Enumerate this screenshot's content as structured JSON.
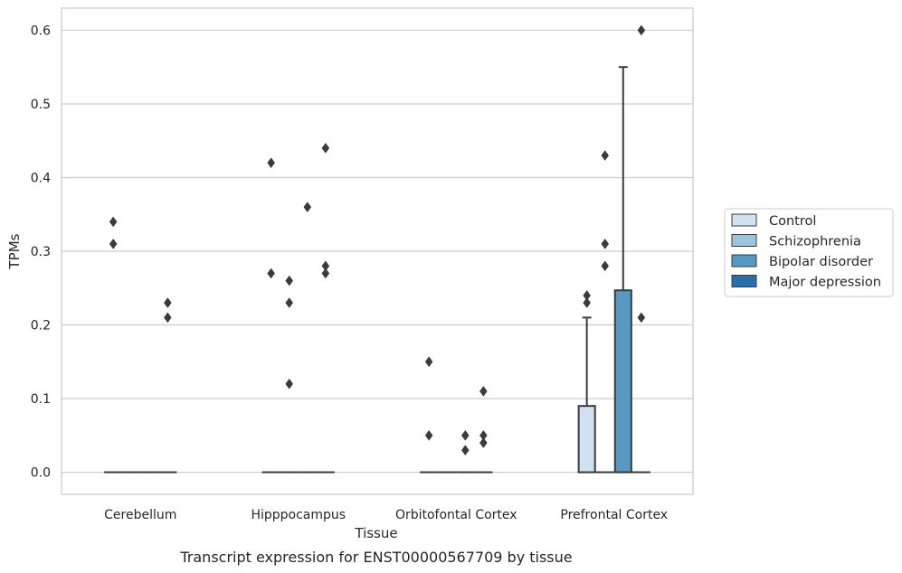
{
  "caption": "Transcript expression for ENST00000567709 by tissue",
  "chart_data": {
    "type": "box",
    "title": "",
    "xlabel": "Tissue",
    "ylabel": "TPMs",
    "ylim": [
      -0.03,
      0.63
    ],
    "yticks": [
      0.0,
      0.1,
      0.2,
      0.3,
      0.4,
      0.5,
      0.6
    ],
    "ytick_labels": [
      "0.0",
      "0.1",
      "0.2",
      "0.3",
      "0.4",
      "0.5",
      "0.6"
    ],
    "grid": "horizontal",
    "categories": [
      "Cerebellum",
      "Hipppocampus",
      "Orbitofontal Cortex",
      "Prefrontal Cortex"
    ],
    "legend": {
      "placement": "outside-right",
      "entries": [
        "Control",
        "Schizophrenia",
        "Bipolar disorder",
        "Major depression"
      ]
    },
    "series": [
      {
        "name": "Control",
        "color": "#d0e1f1",
        "boxes": [
          {
            "q1": 0,
            "median": 0,
            "q3": 0,
            "whisker_low": 0,
            "whisker_high": 0,
            "outliers": [
              0.34,
              0.31
            ]
          },
          {
            "q1": 0,
            "median": 0,
            "q3": 0,
            "whisker_low": 0,
            "whisker_high": 0,
            "outliers": [
              0.42,
              0.27
            ]
          },
          {
            "q1": 0,
            "median": 0,
            "q3": 0,
            "whisker_low": 0,
            "whisker_high": 0,
            "outliers": [
              0.15,
              0.05
            ]
          },
          {
            "q1": 0,
            "median": 0,
            "q3": 0.09,
            "whisker_low": 0,
            "whisker_high": 0.21,
            "outliers": [
              0.24,
              0.23
            ]
          }
        ]
      },
      {
        "name": "Schizophrenia",
        "color": "#9dc6dd",
        "boxes": [
          {
            "q1": 0,
            "median": 0,
            "q3": 0,
            "whisker_low": 0,
            "whisker_high": 0,
            "outliers": []
          },
          {
            "q1": 0,
            "median": 0,
            "q3": 0,
            "whisker_low": 0,
            "whisker_high": 0,
            "outliers": [
              0.26,
              0.23,
              0.12
            ]
          },
          {
            "q1": 0,
            "median": 0,
            "q3": 0,
            "whisker_low": 0,
            "whisker_high": 0,
            "outliers": []
          },
          {
            "q1": 0,
            "median": 0,
            "q3": 0,
            "whisker_low": 0,
            "whisker_high": 0,
            "outliers": [
              0.43,
              0.31,
              0.28
            ]
          }
        ]
      },
      {
        "name": "Bipolar disorder",
        "color": "#5599c4",
        "boxes": [
          {
            "q1": 0,
            "median": 0,
            "q3": 0,
            "whisker_low": 0,
            "whisker_high": 0,
            "outliers": []
          },
          {
            "q1": 0,
            "median": 0,
            "q3": 0,
            "whisker_low": 0,
            "whisker_high": 0,
            "outliers": [
              0.36
            ]
          },
          {
            "q1": 0,
            "median": 0,
            "q3": 0,
            "whisker_low": 0,
            "whisker_high": 0,
            "outliers": [
              0.05,
              0.03
            ]
          },
          {
            "q1": 0,
            "median": 0,
            "q3": 0.247,
            "whisker_low": 0,
            "whisker_high": 0.55,
            "outliers": []
          }
        ]
      },
      {
        "name": "Major depression",
        "color": "#2a6fad",
        "boxes": [
          {
            "q1": 0,
            "median": 0,
            "q3": 0,
            "whisker_low": 0,
            "whisker_high": 0,
            "outliers": [
              0.23,
              0.21
            ]
          },
          {
            "q1": 0,
            "median": 0,
            "q3": 0,
            "whisker_low": 0,
            "whisker_high": 0,
            "outliers": [
              0.44,
              0.28,
              0.27
            ]
          },
          {
            "q1": 0,
            "median": 0,
            "q3": 0,
            "whisker_low": 0,
            "whisker_high": 0,
            "outliers": [
              0.11,
              0.05,
              0.04
            ]
          },
          {
            "q1": 0,
            "median": 0,
            "q3": 0,
            "whisker_low": 0,
            "whisker_high": 0,
            "outliers": [
              0.6,
              0.21
            ]
          }
        ]
      }
    ]
  }
}
